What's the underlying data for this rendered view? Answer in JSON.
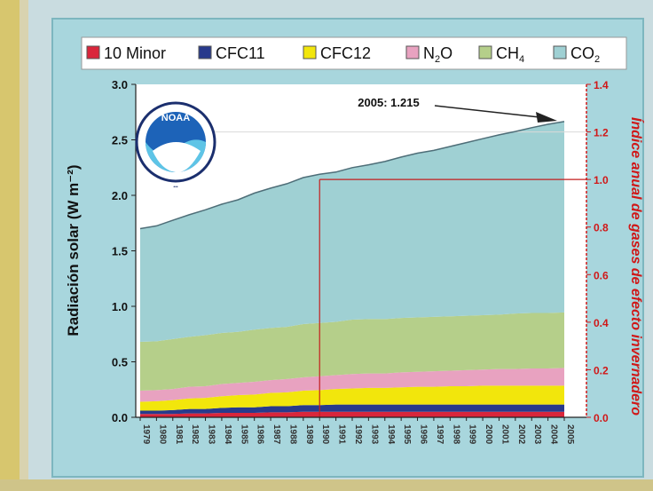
{
  "chart_data": {
    "type": "area",
    "stacked": true,
    "x": [
      1979,
      1980,
      1981,
      1982,
      1983,
      1984,
      1985,
      1986,
      1987,
      1988,
      1989,
      1990,
      1991,
      1992,
      1993,
      1994,
      1995,
      1996,
      1997,
      1998,
      1999,
      2000,
      2001,
      2002,
      2003,
      2004,
      2005
    ],
    "ylabel": "Radiación solar (W m⁻²)",
    "y2label": "Índice anual de gases de efecto invernadero",
    "ylim": [
      0,
      3.0
    ],
    "y2lim": [
      0,
      1.4
    ],
    "yticks": [
      "0.0",
      "0.5",
      "1.0",
      "1.5",
      "2.0",
      "2.5",
      "3.0"
    ],
    "y2ticks": [
      "0.0",
      "0.2",
      "0.4",
      "0.6",
      "0.8",
      "1.0",
      "1.2",
      "1.4"
    ],
    "legend_position": "top",
    "grid": false,
    "reference_year": 1990,
    "reference_index": 1.0,
    "annotation": "2005: 1.215",
    "series": [
      {
        "key": "minor",
        "label_main": "10 Minor",
        "label_sub": "",
        "label_tail": "",
        "color": "#d9263b",
        "values": [
          0.03,
          0.03,
          0.03,
          0.035,
          0.035,
          0.04,
          0.04,
          0.04,
          0.045,
          0.045,
          0.05,
          0.05,
          0.05,
          0.05,
          0.05,
          0.05,
          0.05,
          0.05,
          0.05,
          0.05,
          0.05,
          0.05,
          0.05,
          0.05,
          0.05,
          0.05,
          0.05
        ]
      },
      {
        "key": "cfc11",
        "label_main": "CFC11",
        "label_sub": "",
        "label_tail": "",
        "color": "#283a8c",
        "values": [
          0.03,
          0.03,
          0.035,
          0.04,
          0.04,
          0.045,
          0.05,
          0.05,
          0.055,
          0.055,
          0.06,
          0.06,
          0.065,
          0.065,
          0.065,
          0.065,
          0.065,
          0.065,
          0.065,
          0.065,
          0.065,
          0.065,
          0.065,
          0.065,
          0.065,
          0.065,
          0.065
        ]
      },
      {
        "key": "cfc12",
        "label_main": "CFC12",
        "label_sub": "",
        "label_tail": "",
        "color": "#f2e60c",
        "values": [
          0.08,
          0.085,
          0.09,
          0.095,
          0.1,
          0.105,
          0.11,
          0.115,
          0.12,
          0.125,
          0.13,
          0.135,
          0.14,
          0.145,
          0.15,
          0.15,
          0.155,
          0.16,
          0.16,
          0.165,
          0.165,
          0.17,
          0.17,
          0.17,
          0.17,
          0.17,
          0.17
        ]
      },
      {
        "key": "n2o",
        "label_main": "N",
        "label_sub": "2",
        "label_tail": "O",
        "color": "#e8a2c0",
        "values": [
          0.1,
          0.1,
          0.1,
          0.105,
          0.105,
          0.11,
          0.11,
          0.115,
          0.115,
          0.12,
          0.12,
          0.125,
          0.125,
          0.13,
          0.13,
          0.13,
          0.135,
          0.135,
          0.14,
          0.14,
          0.145,
          0.145,
          0.15,
          0.15,
          0.155,
          0.155,
          0.16
        ]
      },
      {
        "key": "ch4",
        "label_main": "CH",
        "label_sub": "4",
        "label_tail": "",
        "color": "#b5cf8a",
        "values": [
          0.44,
          0.44,
          0.45,
          0.45,
          0.46,
          0.46,
          0.46,
          0.47,
          0.47,
          0.47,
          0.48,
          0.48,
          0.48,
          0.49,
          0.49,
          0.49,
          0.49,
          0.49,
          0.49,
          0.49,
          0.49,
          0.49,
          0.49,
          0.5,
          0.5,
          0.5,
          0.5
        ]
      },
      {
        "key": "co2",
        "label_main": "CO",
        "label_sub": "2",
        "label_tail": "",
        "color": "#9fd0d3",
        "values": [
          1.02,
          1.04,
          1.07,
          1.1,
          1.13,
          1.16,
          1.19,
          1.23,
          1.26,
          1.29,
          1.32,
          1.34,
          1.35,
          1.37,
          1.39,
          1.42,
          1.45,
          1.48,
          1.5,
          1.53,
          1.56,
          1.59,
          1.62,
          1.64,
          1.67,
          1.7,
          1.72
        ]
      }
    ]
  },
  "logo": {
    "text": "NOAA"
  }
}
